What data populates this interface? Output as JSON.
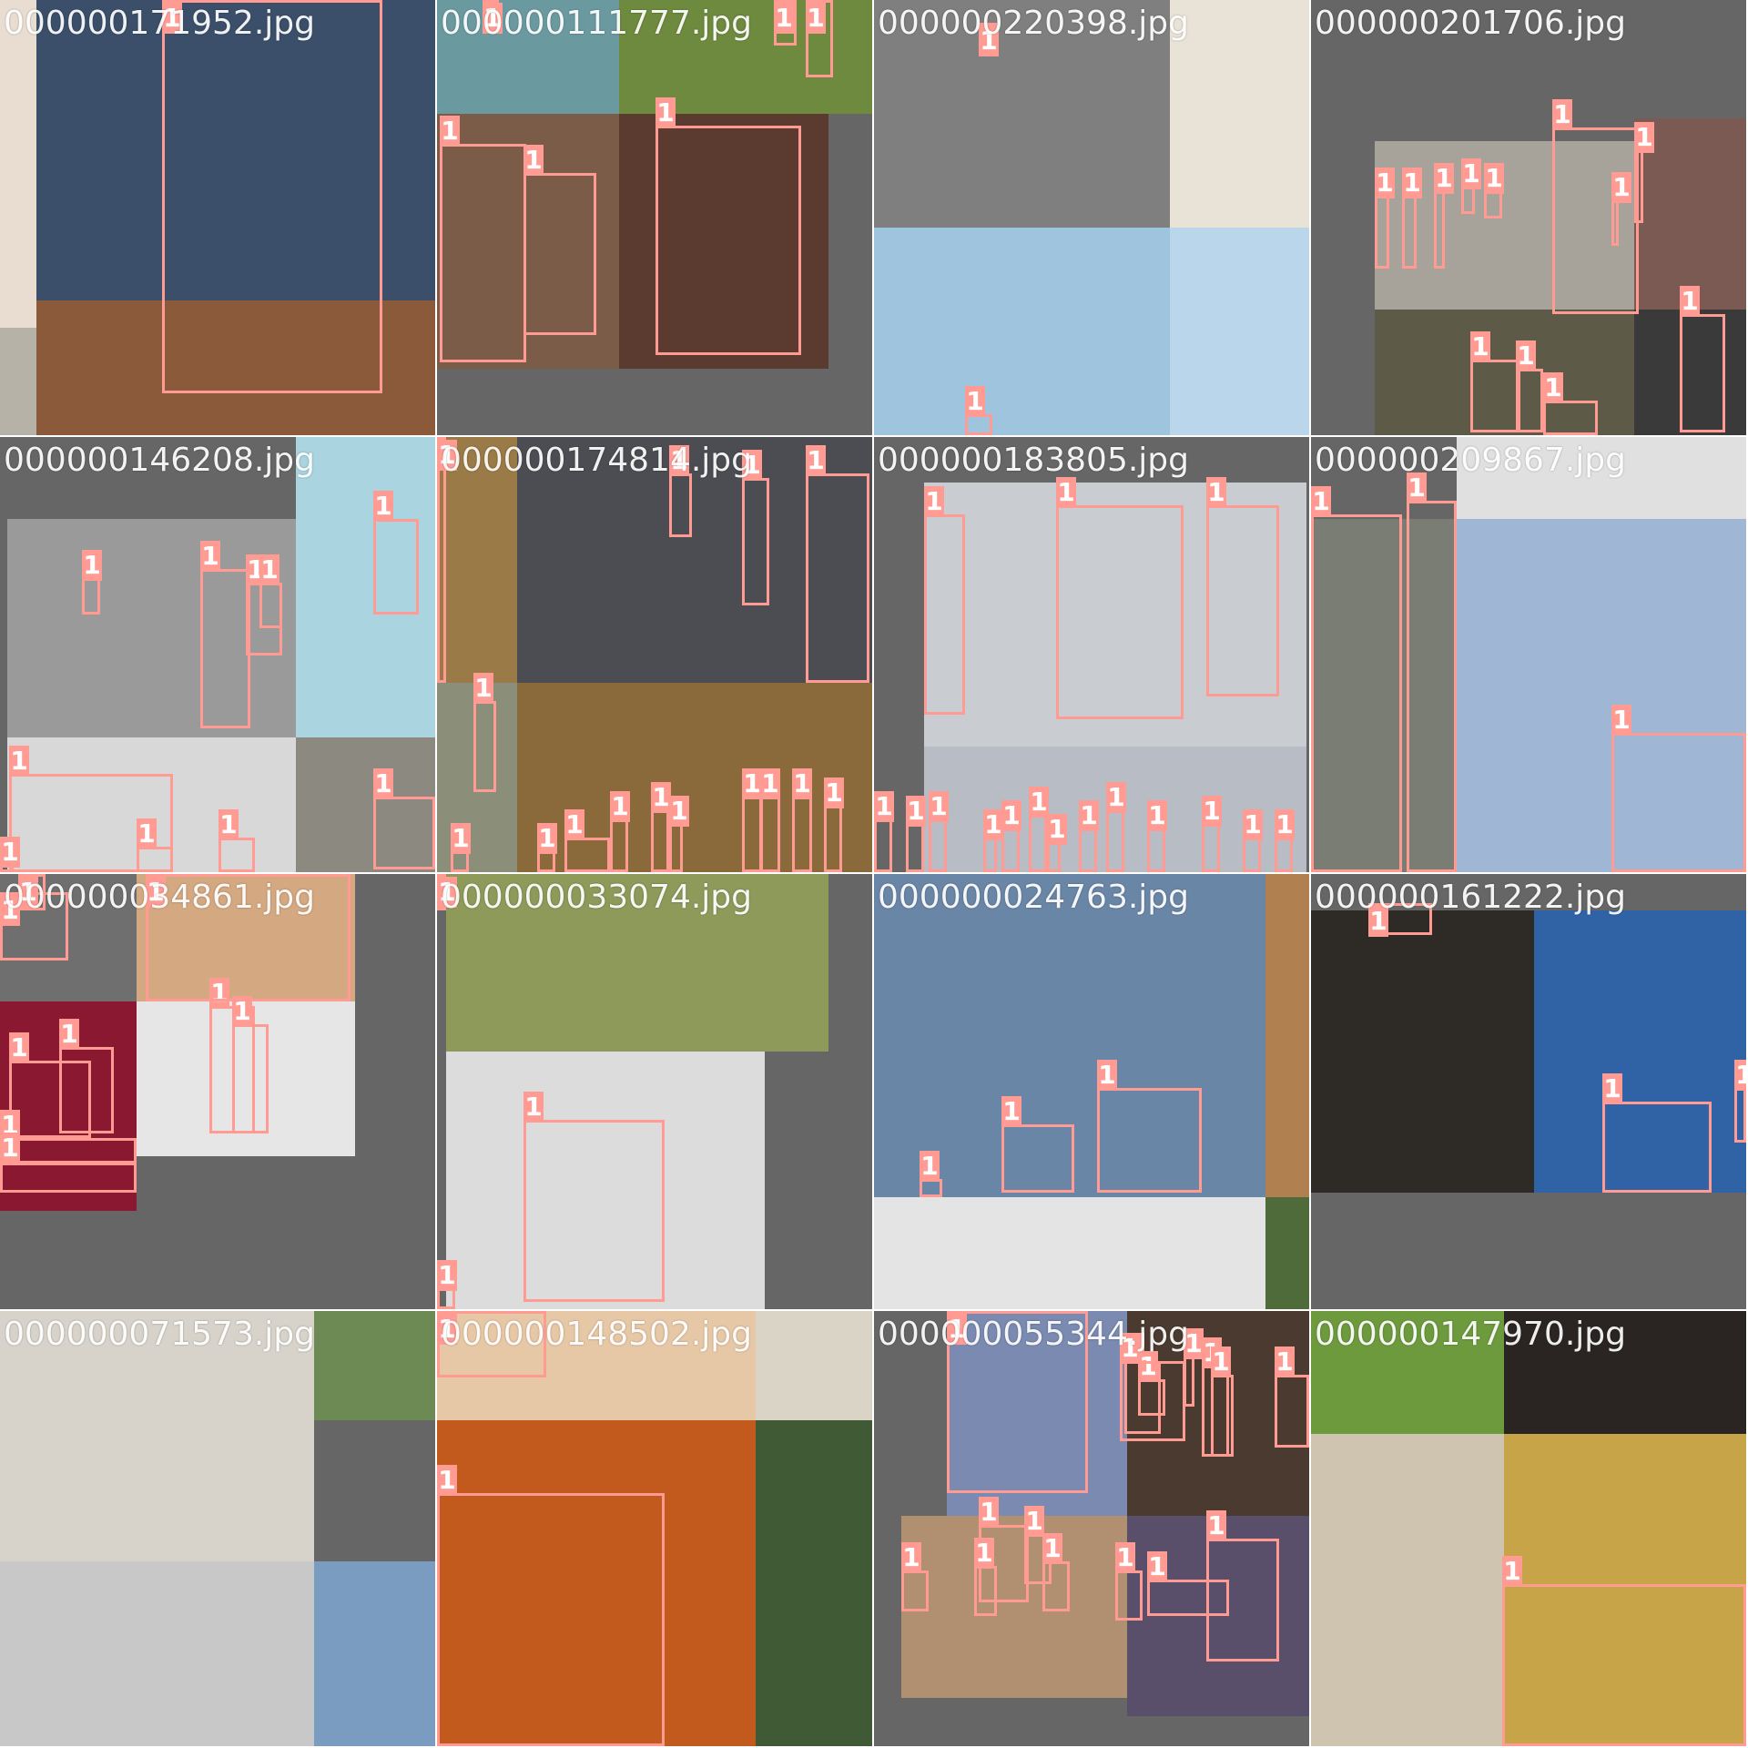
{
  "box_color": "#ff9b93",
  "tiles": [
    {
      "title": "000000171952.jpg",
      "bg": "#666666",
      "photos": [
        {
          "c": "#e8ddd0"
        },
        {
          "c": "#3b4f6b"
        },
        {
          "c": "#8a5a3a"
        },
        {
          "c": "#b7b2a8"
        }
      ],
      "boxes": [
        {
          "label": "1"
        }
      ]
    },
    {
      "title": "000000111777.jpg",
      "bg": "#666666",
      "photos": [
        {
          "c": "#6a9aa0"
        },
        {
          "c": "#6e8a3e"
        },
        {
          "c": "#7a5c48"
        },
        {
          "c": "#5b3a30"
        }
      ],
      "boxes": [
        {
          "label": "1"
        },
        {
          "label": "1"
        },
        {
          "label": "1"
        },
        {
          "label": "1"
        },
        {
          "label": "1"
        },
        {
          "label": "1"
        }
      ]
    },
    {
      "title": "000000220398.jpg",
      "bg": "#666666",
      "photos": [
        {
          "c": "#7f7f80"
        },
        {
          "c": "#e9e3d7"
        },
        {
          "c": "#9fc4de"
        },
        {
          "c": "#b9d6ea"
        }
      ],
      "boxes": [
        {
          "label": "1"
        },
        {
          "label": "1"
        }
      ]
    },
    {
      "title": "000000201706.jpg",
      "bg": "#666666",
      "photos": [
        {
          "c": "#a8a39a"
        },
        {
          "c": "#7b5a54"
        },
        {
          "c": "#5d5a48"
        },
        {
          "c": "#3a3a3a"
        }
      ],
      "boxes": [
        {
          "label": "1"
        },
        {
          "label": "1"
        },
        {
          "label": "1"
        },
        {
          "label": "1"
        },
        {
          "label": "1"
        },
        {
          "label": "1"
        },
        {
          "label": "1"
        },
        {
          "label": "1"
        },
        {
          "label": "1"
        },
        {
          "label": "1"
        },
        {
          "label": "1"
        },
        {
          "label": "1"
        }
      ]
    },
    {
      "title": "000000146208.jpg",
      "bg": "#666666",
      "photos": [
        {
          "c": "#9a9a9a"
        },
        {
          "c": "#a9d4e0"
        },
        {
          "c": "#d8d8d8"
        },
        {
          "c": "#8c8a80"
        }
      ],
      "boxes": [
        {
          "label": "1"
        },
        {
          "label": "1"
        },
        {
          "label": "1"
        },
        {
          "label": "1"
        },
        {
          "label": "1"
        },
        {
          "label": "1"
        },
        {
          "label": "1"
        },
        {
          "label": "1"
        },
        {
          "label": "1"
        },
        {
          "label": "1"
        }
      ]
    },
    {
      "title": "000000174814.jpg",
      "bg": "#666666",
      "photos": [
        {
          "c": "#9a7a46"
        },
        {
          "c": "#4b4d52"
        },
        {
          "c": "#8b8f7a"
        },
        {
          "c": "#8a6a3a"
        }
      ],
      "boxes": [
        {
          "label": "1"
        },
        {
          "label": "1"
        },
        {
          "label": "1"
        },
        {
          "label": "1"
        },
        {
          "label": "1"
        },
        {
          "label": "1"
        },
        {
          "label": "1"
        },
        {
          "label": "1"
        },
        {
          "label": "1"
        },
        {
          "label": "1"
        },
        {
          "label": "1"
        },
        {
          "label": "1"
        },
        {
          "label": "1"
        },
        {
          "label": "1"
        },
        {
          "label": "1"
        },
        {
          "label": "1"
        }
      ]
    },
    {
      "title": "000000183805.jpg",
      "bg": "#666666",
      "photos": [
        {
          "c": "#c9ccd0"
        },
        {
          "c": "#b8bcc4"
        }
      ],
      "boxes": [
        {
          "label": "1"
        },
        {
          "label": "1"
        },
        {
          "label": "1"
        },
        {
          "label": "1"
        },
        {
          "label": "1"
        },
        {
          "label": "1"
        },
        {
          "label": "1"
        },
        {
          "label": "1"
        },
        {
          "label": "1"
        },
        {
          "label": "1"
        },
        {
          "label": "1"
        },
        {
          "label": "1"
        },
        {
          "label": "1"
        },
        {
          "label": "1"
        },
        {
          "label": "1"
        },
        {
          "label": "1"
        }
      ]
    },
    {
      "title": "000000209867.jpg",
      "bg": "#666666",
      "photos": [
        {
          "c": "#e0e0e0"
        },
        {
          "c": "#7a7d74"
        },
        {
          "c": "#9fb6d4"
        }
      ],
      "boxes": [
        {
          "label": "1"
        },
        {
          "label": "1"
        },
        {
          "label": "1"
        }
      ]
    },
    {
      "title": "000000034861.jpg",
      "bg": "#666666",
      "photos": [
        {
          "c": "#6f6f6f"
        },
        {
          "c": "#d4a880"
        },
        {
          "c": "#8a1830"
        },
        {
          "c": "#e6e6e6"
        }
      ],
      "boxes": [
        {
          "label": "1"
        },
        {
          "label": "1"
        },
        {
          "label": "1"
        },
        {
          "label": "1"
        },
        {
          "label": "1"
        },
        {
          "label": "1"
        },
        {
          "label": "1"
        },
        {
          "label": "1"
        },
        {
          "label": "1"
        }
      ]
    },
    {
      "title": "000000033074.jpg",
      "bg": "#666666",
      "photos": [
        {
          "c": "#8d9a5a"
        },
        {
          "c": "#dcdcdc"
        }
      ],
      "boxes": [
        {
          "label": "1"
        },
        {
          "label": "1"
        },
        {
          "label": "1"
        }
      ]
    },
    {
      "title": "000000024763.jpg",
      "bg": "#666666",
      "photos": [
        {
          "c": "#6a86a6"
        },
        {
          "c": "#b08050"
        },
        {
          "c": "#e4e4e4"
        },
        {
          "c": "#4f6b3a"
        }
      ],
      "boxes": [
        {
          "label": "1"
        },
        {
          "label": "1"
        },
        {
          "label": "1"
        }
      ]
    },
    {
      "title": "000000161222.jpg",
      "bg": "#666666",
      "photos": [
        {
          "c": "#2e2b27"
        },
        {
          "c": "#2f63a6"
        }
      ],
      "boxes": [
        {
          "label": "1"
        },
        {
          "label": "1"
        },
        {
          "label": "1"
        }
      ]
    },
    {
      "title": "000000071573.jpg",
      "bg": "#666666",
      "photos": [
        {
          "c": "#d7d3cb"
        },
        {
          "c": "#6d8a54"
        },
        {
          "c": "#c8c8c8"
        },
        {
          "c": "#7a9cc0"
        }
      ],
      "boxes": []
    },
    {
      "title": "000000148502.jpg",
      "bg": "#666666",
      "photos": [
        {
          "c": "#e6c8a6"
        },
        {
          "c": "#d9d4c6"
        },
        {
          "c": "#c25a1e"
        },
        {
          "c": "#3f5a34"
        }
      ],
      "boxes": [
        {
          "label": "1"
        },
        {
          "label": "1"
        }
      ]
    },
    {
      "title": "000000055344.jpg",
      "bg": "#666666",
      "photos": [
        {
          "c": "#7a8ab0"
        },
        {
          "c": "#4a3a30"
        },
        {
          "c": "#b09070"
        },
        {
          "c": "#5a4f6a"
        }
      ],
      "boxes": [
        {
          "label": "1"
        },
        {
          "label": "1"
        },
        {
          "label": "1"
        },
        {
          "label": "1"
        },
        {
          "label": "1"
        },
        {
          "label": "1"
        },
        {
          "label": "1"
        },
        {
          "label": "1"
        },
        {
          "label": "1"
        },
        {
          "label": "1"
        },
        {
          "label": "1"
        },
        {
          "label": "1"
        },
        {
          "label": "1"
        },
        {
          "label": "1"
        },
        {
          "label": "1"
        },
        {
          "label": "1"
        }
      ]
    },
    {
      "title": "000000147970.jpg",
      "bg": "#666666",
      "photos": [
        {
          "c": "#6e9a3e"
        },
        {
          "c": "#2a2522"
        },
        {
          "c": "#cfc4b0"
        },
        {
          "c": "#c8a448"
        }
      ],
      "boxes": [
        {
          "label": "1"
        }
      ]
    }
  ]
}
